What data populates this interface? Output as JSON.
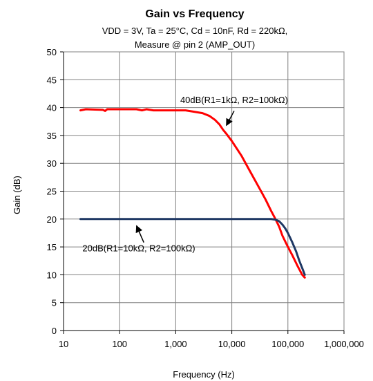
{
  "chart_data": {
    "type": "line",
    "title": "Gain vs Frequency",
    "subtitle_lines": [
      "VDD = 3V, Ta = 25°C, Cd = 10nF, Rd = 220kΩ,",
      "Measure @ pin 2  (AMP_OUT)"
    ],
    "xlabel": "Frequency (Hz)",
    "ylabel": "Gain (dB)",
    "x_scale": "log",
    "xlim": [
      10,
      1000000
    ],
    "ylim": [
      0,
      50
    ],
    "x_ticks": [
      10,
      100,
      1000,
      10000,
      100000,
      1000000
    ],
    "x_tick_labels": [
      "10",
      "100",
      "1,000",
      "10,000",
      "100,000",
      "1,000,000"
    ],
    "y_ticks": [
      0,
      5,
      10,
      15,
      20,
      25,
      30,
      35,
      40,
      45,
      50
    ],
    "y_tick_labels": [
      "0",
      "5",
      "10",
      "15",
      "20",
      "25",
      "30",
      "35",
      "40",
      "45",
      "50"
    ],
    "grid": true,
    "series": [
      {
        "color": "#ff0000",
        "points": [
          [
            20,
            39.5
          ],
          [
            25,
            39.7
          ],
          [
            50,
            39.6
          ],
          [
            55,
            39.4
          ],
          [
            60,
            39.7
          ],
          [
            100,
            39.7
          ],
          [
            200,
            39.7
          ],
          [
            250,
            39.5
          ],
          [
            300,
            39.7
          ],
          [
            400,
            39.5
          ],
          [
            1000,
            39.5
          ],
          [
            1500,
            39.5
          ],
          [
            2000,
            39.3
          ],
          [
            3000,
            39.0
          ],
          [
            4000,
            38.5
          ],
          [
            5000,
            37.8
          ],
          [
            6000,
            37.0
          ],
          [
            7000,
            36.0
          ],
          [
            8000,
            35.3
          ],
          [
            10000,
            34.0
          ],
          [
            15000,
            31.3
          ],
          [
            20000,
            29.0
          ],
          [
            30000,
            25.8
          ],
          [
            40000,
            23.5
          ],
          [
            50000,
            21.5
          ],
          [
            60000,
            20.0
          ],
          [
            70000,
            18.6
          ],
          [
            80000,
            17.0
          ],
          [
            100000,
            15.0
          ],
          [
            120000,
            13.5
          ],
          [
            150000,
            11.5
          ],
          [
            180000,
            10.0
          ],
          [
            200000,
            9.5
          ]
        ]
      },
      {
        "color": "#1f3864",
        "points": [
          [
            20,
            20.0
          ],
          [
            100,
            20.0
          ],
          [
            1000,
            20.0
          ],
          [
            10000,
            20.0
          ],
          [
            30000,
            20.0
          ],
          [
            50000,
            20.0
          ],
          [
            60000,
            19.9
          ],
          [
            70000,
            19.6
          ],
          [
            80000,
            19.0
          ],
          [
            90000,
            18.3
          ],
          [
            100000,
            17.5
          ],
          [
            120000,
            15.8
          ],
          [
            140000,
            14.2
          ],
          [
            160000,
            12.5
          ],
          [
            180000,
            11.2
          ],
          [
            200000,
            10.0
          ]
        ]
      }
    ],
    "annotations": [
      {
        "text": "40dB(R1=1kΩ, R2=100kΩ)",
        "anchor_x": 11000,
        "anchor_y": 40.8,
        "arrow_from": [
          11000,
          39.4
        ],
        "arrow_to": [
          8000,
          36.8
        ]
      },
      {
        "text": "20dB(R1=10kΩ, R2=100kΩ)",
        "anchor_x": 220,
        "anchor_y": 14.2,
        "arrow_from": [
          270,
          15.8
        ],
        "arrow_to": [
          200,
          18.8
        ]
      }
    ],
    "colors": {
      "grid": "#808080",
      "axis": "#000000",
      "text": "#000000"
    }
  }
}
